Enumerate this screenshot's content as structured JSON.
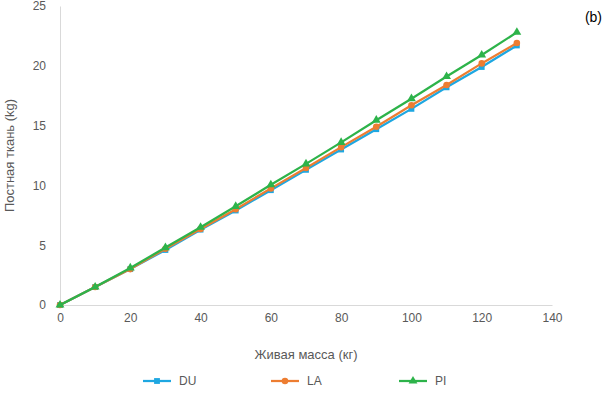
{
  "chart_data": {
    "type": "line",
    "annotations": [
      "(b)"
    ],
    "x_label": "Живая масса (кг)",
    "y_label": "Постная ткань (kg)",
    "x": [
      0,
      10,
      20,
      30,
      40,
      50,
      60,
      70,
      80,
      90,
      100,
      110,
      120,
      130
    ],
    "series": [
      {
        "name": "DU",
        "color": "#1ea7e1",
        "marker": "square",
        "line_style": "solid",
        "values": [
          0,
          1.5,
          3.0,
          4.6,
          6.3,
          7.9,
          9.6,
          11.3,
          13.0,
          14.7,
          16.4,
          18.2,
          19.9,
          21.7
        ]
      },
      {
        "name": "LA",
        "color": "#ed7d31",
        "marker": "circle",
        "line_style": "solid",
        "values": [
          0,
          1.5,
          3.0,
          4.7,
          6.35,
          8.0,
          9.75,
          11.45,
          13.2,
          14.9,
          16.7,
          18.4,
          20.2,
          21.9
        ]
      },
      {
        "name": "PI",
        "color": "#2db34a",
        "marker": "triangle",
        "line_style": "solid",
        "values": [
          0,
          1.5,
          3.1,
          4.8,
          6.5,
          8.25,
          10.05,
          11.8,
          13.6,
          15.45,
          17.25,
          19.1,
          20.9,
          22.8
        ]
      }
    ],
    "xlim": [
      0,
      140
    ],
    "xticks": [
      0,
      20,
      40,
      60,
      80,
      100,
      120,
      140
    ],
    "ylim": [
      0,
      25
    ],
    "yticks": [
      0,
      5,
      10,
      15,
      20,
      25
    ],
    "grid": false,
    "legend": "bottom"
  }
}
